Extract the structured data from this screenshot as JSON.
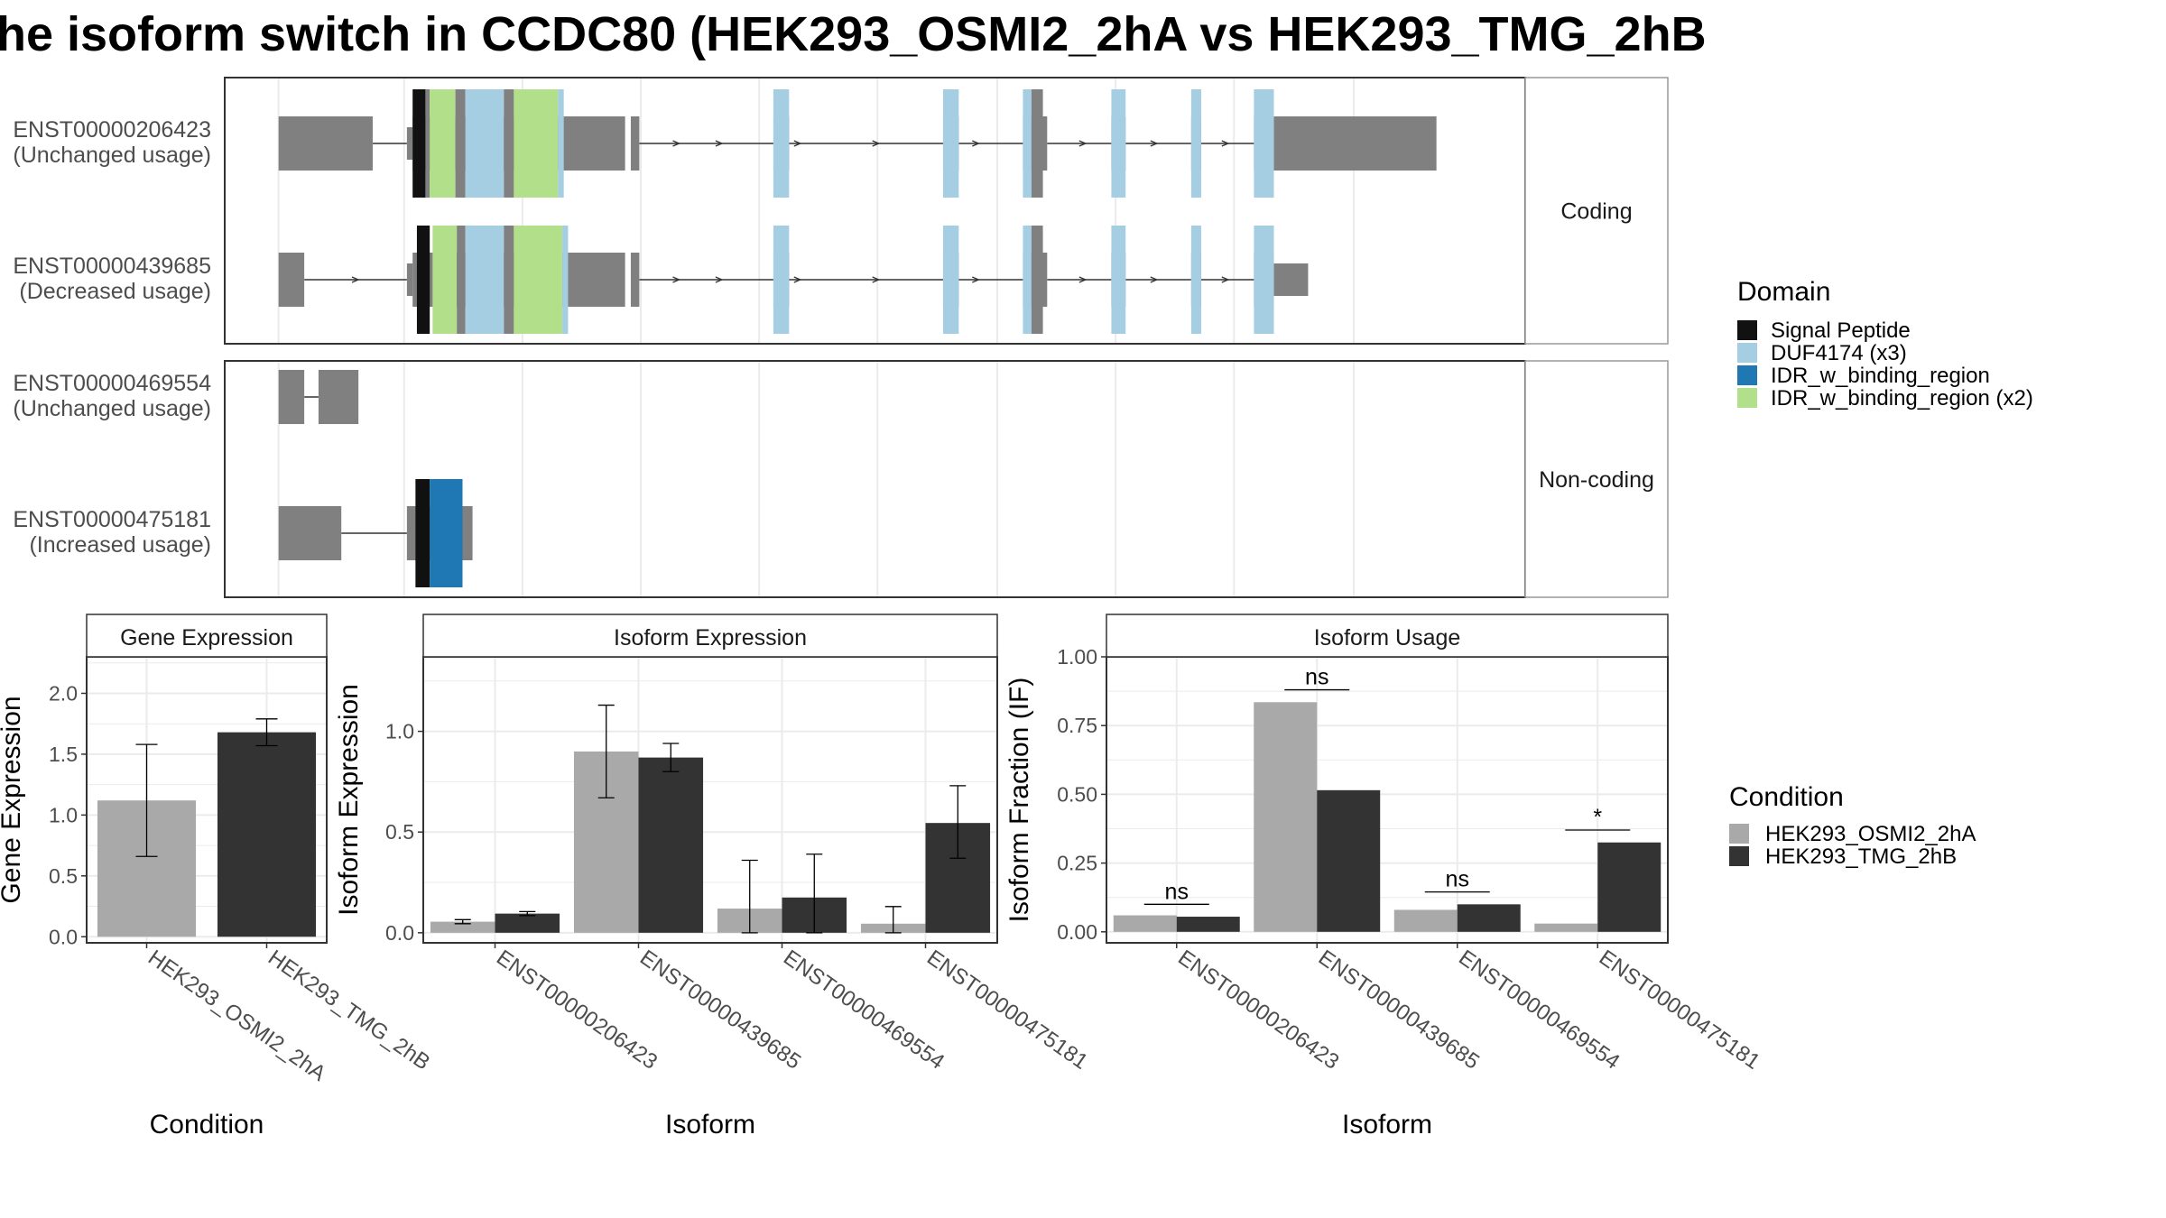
{
  "title": "he isoform switch in CCDC80 (HEK293_OSMI2_2hA vs HEK293_TMG_2hB",
  "colors": {
    "exon": "#808080",
    "signal_peptide": "#111111",
    "duf4174": "#a6cee3",
    "idr_single": "#1f78b4",
    "idr_x2": "#b2df8a",
    "cond_a": "#a9a9a9",
    "cond_b": "#333333",
    "panel_border": "#333333",
    "strip_border": "#999999",
    "grid": "#ebebeb"
  },
  "structure": {
    "groups": [
      {
        "label": "Coding",
        "transcripts": [
          {
            "id": "ENST00000206423",
            "usage": "(Unchanged usage)",
            "exons": [
              [
                -4,
                62,
                1
              ],
              [
                86,
                90,
                0.6
              ],
              [
                90,
                150,
                1
              ],
              [
                150,
                239,
                1
              ],
              [
                243,
                249,
                1
              ],
              [
                343,
                354,
                1
              ],
              [
                462,
                473,
                1
              ],
              [
                518,
                535,
                1
              ],
              [
                580,
                590,
                1
              ],
              [
                636,
                643,
                1
              ],
              [
                680,
                694,
                1
              ],
              [
                694,
                808,
                1
              ]
            ],
            "domains": [
              [
                "signal_peptide",
                90,
                99
              ],
              [
                "exon",
                99,
                102
              ],
              [
                "idr_x2",
                102,
                120
              ],
              [
                "exon",
                120,
                127
              ],
              [
                "duf4174",
                127,
                154
              ],
              [
                "exon",
                154,
                161
              ],
              [
                "idr_x2",
                161,
                192
              ],
              [
                "duf4174",
                192,
                196
              ],
              [
                "duf4174",
                343,
                354
              ],
              [
                "duf4174",
                462,
                473
              ],
              [
                "duf4174",
                518,
                524
              ],
              [
                "exon",
                524,
                532
              ],
              [
                "duf4174",
                580,
                590
              ],
              [
                "duf4174",
                636,
                643
              ],
              [
                "duf4174",
                680,
                694
              ]
            ],
            "introns": [
              [
                62,
                86
              ],
              [
                249,
                343
              ],
              [
                354,
                462
              ],
              [
                473,
                518
              ],
              [
                535,
                580
              ],
              [
                590,
                636
              ],
              [
                643,
                680
              ]
            ],
            "arrows": [
              275,
              305,
              360,
              415,
              485,
              560,
              610,
              660
            ]
          },
          {
            "id": "ENST00000439685",
            "usage": "(Decreased usage)",
            "exons": [
              [
                -4,
                14,
                1
              ],
              [
                86,
                90,
                0.6
              ],
              [
                90,
                150,
                1
              ],
              [
                150,
                239,
                1
              ],
              [
                243,
                249,
                1
              ],
              [
                343,
                354,
                1
              ],
              [
                462,
                473,
                1
              ],
              [
                518,
                535,
                1
              ],
              [
                580,
                590,
                1
              ],
              [
                636,
                643,
                1
              ],
              [
                680,
                694,
                1
              ],
              [
                694,
                718,
                0.6
              ]
            ],
            "domains": [
              [
                "signal_peptide",
                93,
                102
              ],
              [
                "idr_x2",
                104,
                121
              ],
              [
                "exon",
                121,
                127
              ],
              [
                "duf4174",
                127,
                154
              ],
              [
                "exon",
                154,
                161
              ],
              [
                "idr_x2",
                161,
                195
              ],
              [
                "duf4174",
                195,
                199
              ],
              [
                "duf4174",
                343,
                354
              ],
              [
                "duf4174",
                462,
                473
              ],
              [
                "duf4174",
                518,
                524
              ],
              [
                "exon",
                524,
                532
              ],
              [
                "duf4174",
                580,
                590
              ],
              [
                "duf4174",
                636,
                643
              ],
              [
                "duf4174",
                680,
                694
              ]
            ],
            "introns": [
              [
                14,
                86
              ],
              [
                249,
                343
              ],
              [
                354,
                462
              ],
              [
                473,
                518
              ],
              [
                535,
                580
              ],
              [
                590,
                636
              ],
              [
                643,
                680
              ]
            ],
            "arrows": [
              50,
              275,
              305,
              360,
              415,
              485,
              560,
              610,
              660
            ]
          }
        ]
      },
      {
        "label": "Non-coding",
        "transcripts": [
          {
            "id": "ENST00000469554",
            "usage": "(Unchanged usage)",
            "exons": [
              [
                -4,
                14,
                1
              ],
              [
                24,
                52,
                1
              ]
            ],
            "domains": [],
            "introns": [
              [
                14,
                24
              ]
            ],
            "arrows": []
          },
          {
            "id": "ENST00000475181",
            "usage": "(Increased usage)",
            "exons": [
              [
                -4,
                40,
                1
              ],
              [
                86,
                132,
                1
              ]
            ],
            "domains": [
              [
                "signal_peptide",
                92,
                102
              ],
              [
                "idr_single",
                102,
                125
              ]
            ],
            "introns": [
              [
                40,
                86
              ]
            ],
            "arrows": []
          }
        ]
      }
    ]
  },
  "legend_domain": {
    "title": "Domain",
    "items": [
      {
        "label": "Signal Peptide",
        "color": "#111111"
      },
      {
        "label": "DUF4174 (x3)",
        "color": "#a6cee3"
      },
      {
        "label": "IDR_w_binding_region",
        "color": "#1f78b4"
      },
      {
        "label": "IDR_w_binding_region (x2)",
        "color": "#b2df8a"
      }
    ]
  },
  "legend_condition": {
    "title": "Condition",
    "items": [
      {
        "label": "HEK293_OSMI2_2hA",
        "color": "#a9a9a9"
      },
      {
        "label": "HEK293_TMG_2hB",
        "color": "#333333"
      }
    ]
  },
  "chart_data": [
    {
      "type": "bar",
      "title": "Gene Expression",
      "xlabel": "Condition",
      "ylabel": "Gene Expression",
      "ylim": [
        -0.05,
        2.3
      ],
      "yticks": [
        "0.0",
        "0.5",
        "1.0",
        "1.5",
        "2.0"
      ],
      "categories": [
        "HEK293_OSMI2_2hA",
        "HEK293_TMG_2hB"
      ],
      "values": [
        1.12,
        1.68
      ],
      "error_low": [
        0.66,
        1.57
      ],
      "error_high": [
        1.58,
        1.79
      ]
    },
    {
      "type": "bar",
      "title": "Isoform Expression",
      "xlabel": "Isoform",
      "ylabel": "Isoform Expression",
      "ylim": [
        -0.05,
        1.37
      ],
      "yticks": [
        "0.0",
        "0.5",
        "1.0"
      ],
      "categories": [
        "ENST00000206423",
        "ENST00000439685",
        "ENST00000469554",
        "ENST00000475181"
      ],
      "series": [
        {
          "name": "HEK293_OSMI2_2hA",
          "values": [
            0.055,
            0.9,
            0.12,
            0.045
          ],
          "error_low": [
            0.045,
            0.67,
            0.0,
            0.0
          ],
          "error_high": [
            0.065,
            1.13,
            0.36,
            0.13
          ]
        },
        {
          "name": "HEK293_TMG_2hB",
          "values": [
            0.095,
            0.87,
            0.175,
            0.545
          ],
          "error_low": [
            0.085,
            0.8,
            0.0,
            0.37
          ],
          "error_high": [
            0.105,
            0.94,
            0.39,
            0.73
          ]
        }
      ]
    },
    {
      "type": "bar",
      "title": "Isoform Usage",
      "xlabel": "Isoform",
      "ylabel": "Isoform Fraction (IF)",
      "ylim": [
        -0.04,
        1.0
      ],
      "yticks": [
        "0.00",
        "0.25",
        "0.50",
        "0.75",
        "1.00"
      ],
      "categories": [
        "ENST00000206423",
        "ENST00000439685",
        "ENST00000469554",
        "ENST00000475181"
      ],
      "series": [
        {
          "name": "HEK293_OSMI2_2hA",
          "values": [
            0.06,
            0.835,
            0.08,
            0.03
          ]
        },
        {
          "name": "HEK293_TMG_2hB",
          "values": [
            0.055,
            0.515,
            0.1,
            0.325
          ]
        }
      ],
      "significance": [
        {
          "label": "ns",
          "y": 0.1
        },
        {
          "label": "ns",
          "y": 0.88
        },
        {
          "label": "ns",
          "y": 0.145
        },
        {
          "label": "*",
          "y": 0.37
        }
      ]
    }
  ]
}
